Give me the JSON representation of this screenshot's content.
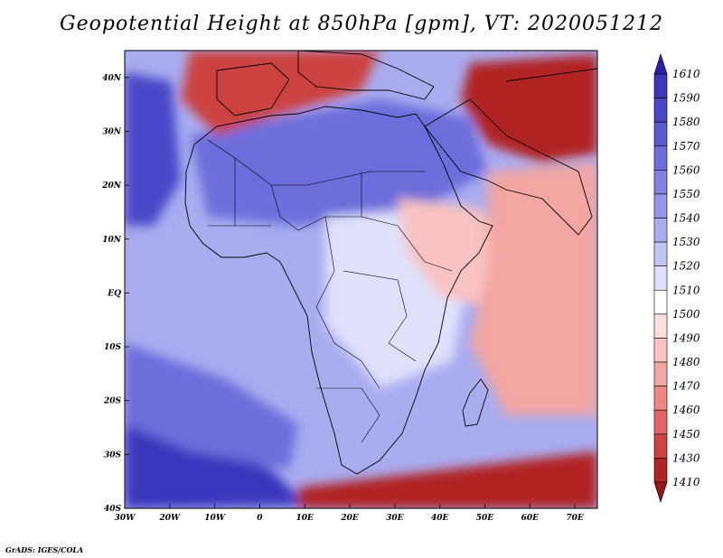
{
  "title": "Geopotential Height at 850hPa [gpm], VT: 2020051212",
  "credit": "GrADS: IGES/COLA",
  "axes": {
    "lon_labels": [
      "30W",
      "20W",
      "10W",
      "0",
      "10E",
      "20E",
      "30E",
      "40E",
      "50E",
      "60E",
      "70E"
    ],
    "lat_labels": [
      "40N",
      "30N",
      "20N",
      "10N",
      "EQ",
      "10S",
      "20S",
      "30S",
      "40S"
    ],
    "lon_range": [
      -30,
      75
    ],
    "lat_range": [
      -40,
      45
    ]
  },
  "colorbar": {
    "levels": [
      "1610",
      "1590",
      "1580",
      "1570",
      "1560",
      "1550",
      "1540",
      "1530",
      "1520",
      "1510",
      "1500",
      "1490",
      "1480",
      "1470",
      "1460",
      "1450",
      "1430",
      "1410"
    ],
    "colors": [
      "#2a1fa8",
      "#3b34bd",
      "#4a46c8",
      "#5a59d2",
      "#6d6ddb",
      "#8180e3",
      "#9596ea",
      "#aaacf0",
      "#c1c4f6",
      "#dfe1fb",
      "#ffffff",
      "#fde0de",
      "#f8c3c0",
      "#f3a6a2",
      "#ec8783",
      "#e06665",
      "#cc4341",
      "#b12424",
      "#951616"
    ]
  },
  "regions": {
    "fill_colors": {
      "background": "#aaacf0",
      "sahara_high": "#6d6ddb",
      "atlantic_high": "#4a46c8",
      "south_atlantic_high": "#3b34bd",
      "iberian_low": "#cc4341",
      "mideast_low": "#b12424",
      "east_africa_low": "#f8c3c0",
      "indian_ocean": "#f3a6a2",
      "southern_low": "#b12424",
      "land_neutral": "#dfe1fb"
    }
  }
}
